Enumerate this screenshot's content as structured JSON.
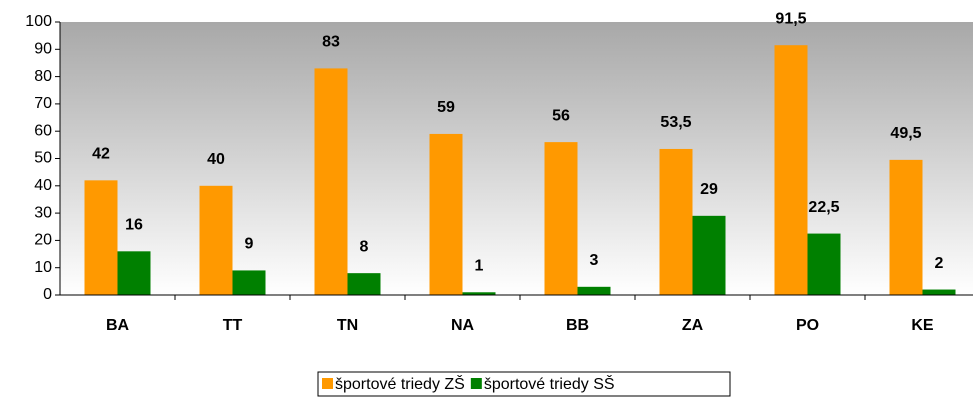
{
  "chart_data": {
    "type": "bar",
    "categories": [
      "BA",
      "TT",
      "TN",
      "NA",
      "BB",
      "ZA",
      "PO",
      "KE"
    ],
    "series": [
      {
        "name": "športové triedy ZŠ",
        "color": "#ff9900",
        "values": [
          42,
          40,
          83,
          59,
          56,
          53.5,
          91.5,
          49.5
        ],
        "value_labels": [
          "42",
          "40",
          "83",
          "59",
          "56",
          "53,5",
          "91,5",
          "49,5"
        ]
      },
      {
        "name": "športové triedy SŠ",
        "color": "#008000",
        "values": [
          16,
          9,
          8,
          1,
          3,
          29,
          22.5,
          2
        ],
        "value_labels": [
          "16",
          "9",
          "8",
          "1",
          "3",
          "29",
          "22,5",
          "2"
        ]
      }
    ],
    "ylim": [
      0,
      100
    ],
    "yticks": [
      0,
      10,
      20,
      30,
      40,
      50,
      60,
      70,
      80,
      90,
      100
    ],
    "legend": "bottom"
  }
}
